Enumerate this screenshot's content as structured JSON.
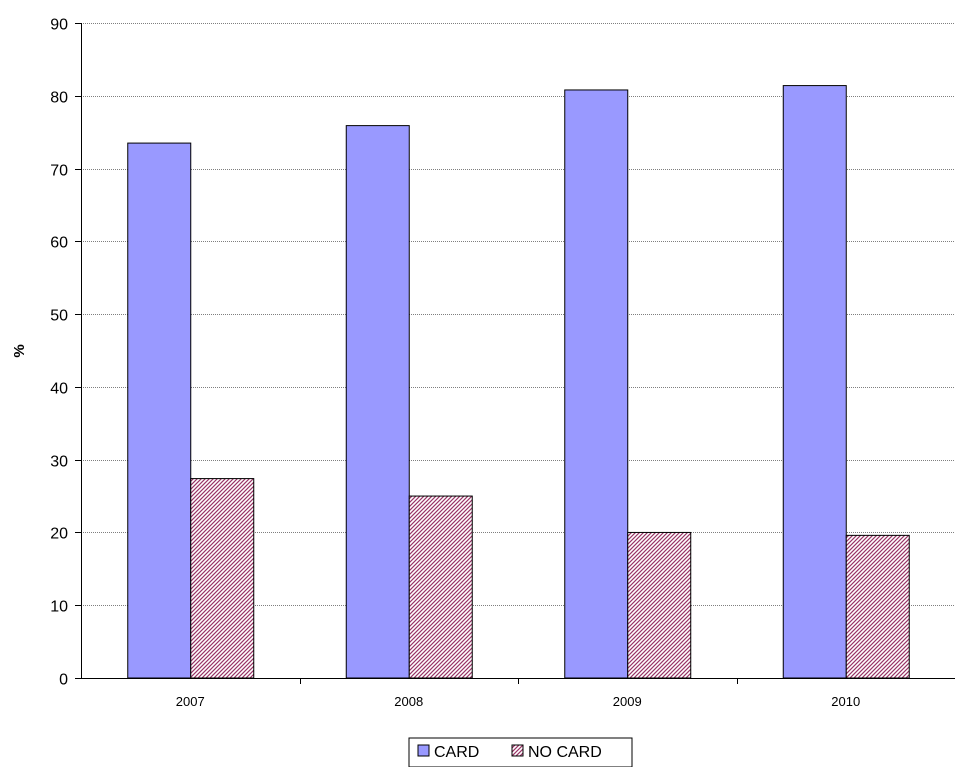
{
  "chart_data": {
    "type": "bar",
    "categories": [
      "2007",
      "2008",
      "2009",
      "2010"
    ],
    "series": [
      {
        "name": "CARD",
        "values": [
          73.5,
          75.9,
          80.8,
          81.4
        ],
        "color": "#9999ff",
        "pattern": "solid"
      },
      {
        "name": "NO CARD",
        "values": [
          27.4,
          25.0,
          20.0,
          19.6
        ],
        "color": "#993366",
        "pattern": "diagonal-hatch"
      }
    ],
    "title": "",
    "xlabel": "",
    "ylabel": "%",
    "ylim": [
      0,
      90
    ],
    "yticks": [
      0,
      10,
      20,
      30,
      40,
      50,
      60,
      70,
      80,
      90
    ],
    "grid": "horizontal",
    "legend": {
      "placement": "bottom-center",
      "entries": [
        "CARD",
        "NO CARD"
      ]
    }
  }
}
